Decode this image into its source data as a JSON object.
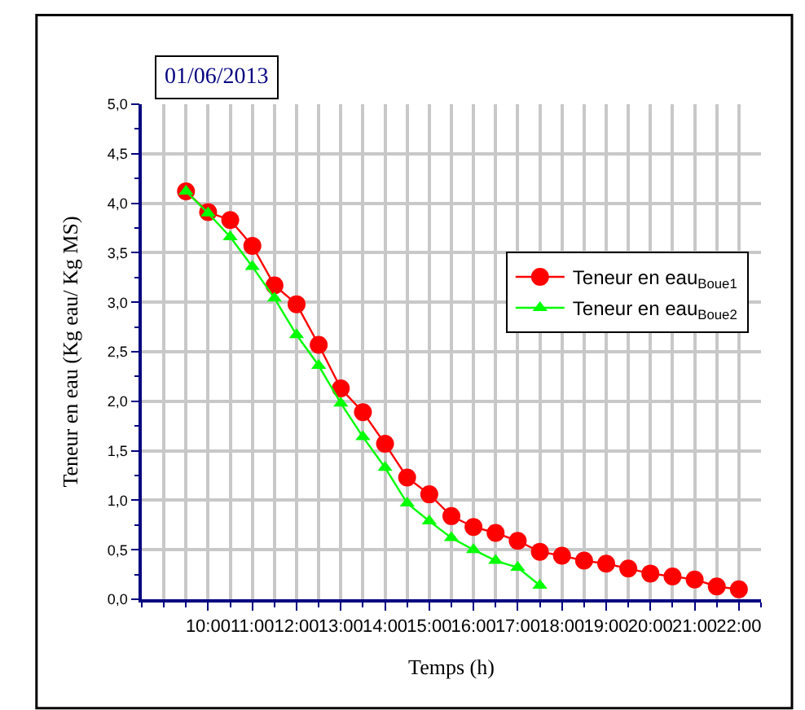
{
  "chart_data": {
    "type": "line",
    "title": "01/06/2013",
    "xlabel": "Temps (h)",
    "ylabel": "Teneur en eau (Kg eau/ Kg MS)",
    "xlim": [
      8.5,
      22.5
    ],
    "xticks": [
      {
        "value": 10,
        "label": "10:00"
      },
      {
        "value": 11,
        "label": "11:00"
      },
      {
        "value": 12,
        "label": "12:00"
      },
      {
        "value": 13,
        "label": "13:00"
      },
      {
        "value": 14,
        "label": "14:00"
      },
      {
        "value": 15,
        "label": "15:00"
      },
      {
        "value": 16,
        "label": "16:00"
      },
      {
        "value": 17,
        "label": "17:00"
      },
      {
        "value": 18,
        "label": "18:00"
      },
      {
        "value": 19,
        "label": "19:00"
      },
      {
        "value": 20,
        "label": "20:00"
      },
      {
        "value": 21,
        "label": "21:00"
      },
      {
        "value": 22,
        "label": "22:00"
      }
    ],
    "ylim": [
      0,
      5
    ],
    "yticks": [
      {
        "value": 0,
        "label": "0,0"
      },
      {
        "value": 0.5,
        "label": "0,5"
      },
      {
        "value": 1,
        "label": "1,0"
      },
      {
        "value": 1.5,
        "label": "1,5"
      },
      {
        "value": 2,
        "label": "2,0"
      },
      {
        "value": 2.5,
        "label": "2,5"
      },
      {
        "value": 3,
        "label": "3,0"
      },
      {
        "value": 3.5,
        "label": "3,5"
      },
      {
        "value": 4,
        "label": "4,0"
      },
      {
        "value": 4.5,
        "label": "4,5"
      },
      {
        "value": 5,
        "label": "5,0"
      }
    ],
    "grid": true,
    "legend": "right",
    "series": [
      {
        "name": "Teneur en eau$_{Boue1}$",
        "color": "#ff0000",
        "marker": "circle",
        "x": [
          9.5,
          10,
          10.5,
          11,
          11.5,
          12,
          12.5,
          13,
          13.5,
          14,
          14.5,
          15,
          15.5,
          16,
          16.5,
          17,
          17.5,
          18,
          18.5,
          19,
          19.5,
          20,
          20.5,
          21,
          21.5,
          22
        ],
        "values": [
          4.12,
          3.91,
          3.83,
          3.57,
          3.17,
          2.98,
          2.57,
          2.13,
          1.89,
          1.57,
          1.23,
          1.06,
          0.84,
          0.73,
          0.67,
          0.59,
          0.48,
          0.44,
          0.39,
          0.36,
          0.31,
          0.26,
          0.23,
          0.2,
          0.13,
          0.1
        ]
      },
      {
        "name": "Teneur en eau$_{Boue2}$",
        "color": "#00ff00",
        "marker": "triangle",
        "x": [
          9.5,
          10,
          10.5,
          11,
          11.5,
          12,
          12.5,
          13,
          13.5,
          14,
          14.5,
          15,
          15.5,
          16,
          16.5,
          17,
          17.5
        ],
        "values": [
          4.12,
          3.9,
          3.66,
          3.36,
          3.04,
          2.67,
          2.36,
          1.98,
          1.64,
          1.33,
          0.97,
          0.79,
          0.62,
          0.5,
          0.39,
          0.32,
          0.14
        ]
      }
    ]
  }
}
